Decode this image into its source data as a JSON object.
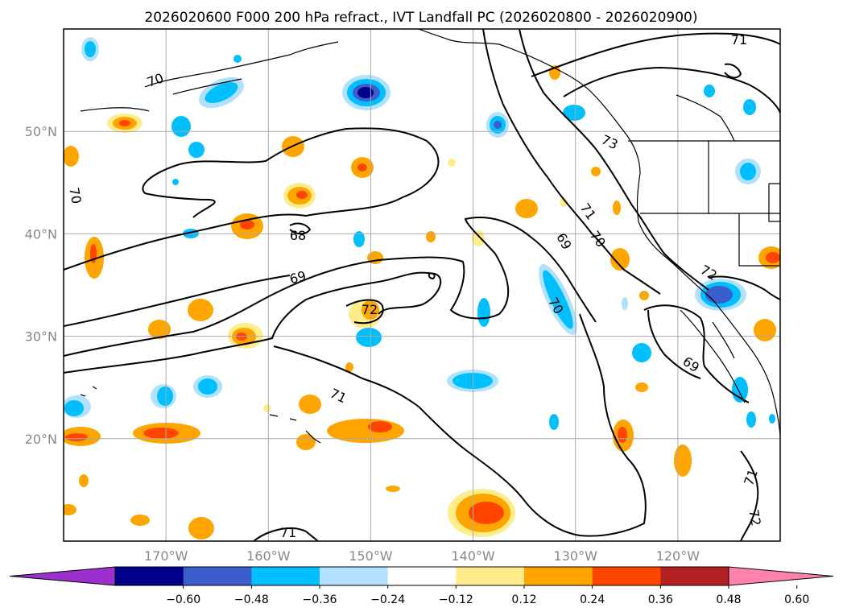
{
  "title": "2026020600 F000 200 hPa refract., IVT Landfall PC (2026020800 - 2026020900)",
  "map": {
    "lat_range": [
      10,
      60
    ],
    "lon_range": [
      -180,
      -110
    ],
    "lat_ticks": [
      {
        "value": 20,
        "label": "20°N"
      },
      {
        "value": 30,
        "label": "30°N"
      },
      {
        "value": 40,
        "label": "40°N"
      },
      {
        "value": 50,
        "label": "50°N"
      }
    ],
    "lon_ticks": [
      {
        "value": -170,
        "label": "170°W"
      },
      {
        "value": -160,
        "label": "160°W"
      },
      {
        "value": -150,
        "label": "150°W"
      },
      {
        "value": -140,
        "label": "140°W"
      },
      {
        "value": -130,
        "label": "130°W"
      },
      {
        "value": -120,
        "label": "120°W"
      }
    ],
    "gridlines": true
  },
  "contour_labels": [
    "71",
    "70",
    "70",
    "68",
    "69",
    "72",
    "71",
    "71",
    "69",
    "70",
    "71",
    "70",
    "72",
    "69",
    "71",
    "72",
    "73"
  ],
  "colorbar": {
    "orientation": "horizontal",
    "extend": "both",
    "tick_labels": [
      "−0.60",
      "−0.48",
      "−0.36",
      "−0.24",
      "−0.12",
      "0.12",
      "0.24",
      "0.36",
      "0.48",
      "0.60"
    ],
    "colors": [
      "#9b30cf",
      "#00008b",
      "#3a5fcd",
      "#00bfff",
      "#b0e2ff",
      "#ffffff",
      "#ffec8b",
      "#ffa500",
      "#ff4500",
      "#b22222",
      "#ff82ab"
    ]
  }
}
